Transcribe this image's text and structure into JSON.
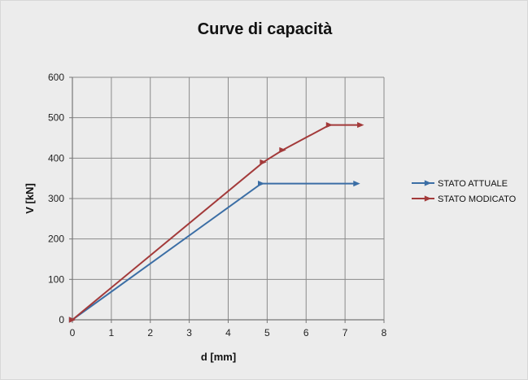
{
  "chart_data": {
    "type": "line",
    "title": "Curve di capacità",
    "xlabel": "d [mm]",
    "ylabel": "V [kN]",
    "xlim": [
      0,
      8
    ],
    "ylim": [
      0,
      600
    ],
    "xticks": [
      0,
      1,
      2,
      3,
      4,
      5,
      6,
      7,
      8
    ],
    "yticks": [
      0,
      100,
      200,
      300,
      400,
      500,
      600
    ],
    "grid": true,
    "legend_position": "right",
    "series": [
      {
        "name": "STATO ATTUALE",
        "color": "#3b6ea5",
        "marker": "triangle-right",
        "points": [
          [
            0,
            0
          ],
          [
            4.85,
            337
          ],
          [
            7.3,
            337
          ]
        ]
      },
      {
        "name": "STATO MODICATO",
        "color": "#a33a3a",
        "marker": "triangle-right",
        "points": [
          [
            0,
            0
          ],
          [
            4.9,
            390
          ],
          [
            5.4,
            420
          ],
          [
            6.6,
            482
          ],
          [
            7.4,
            482
          ]
        ]
      }
    ]
  }
}
